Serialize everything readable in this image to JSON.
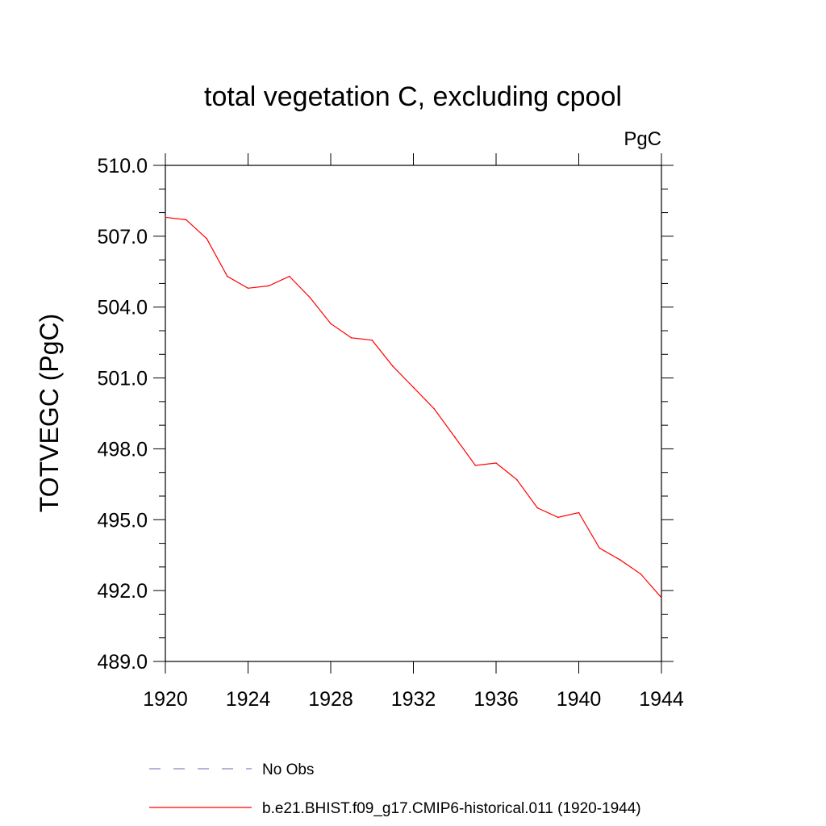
{
  "chart_data": {
    "type": "line",
    "title": "total vegetation C, excluding cpool",
    "units": "PgC",
    "ylabel": "TOTVEGC  (PgC)",
    "xlabel": "",
    "xlim": [
      1920,
      1944
    ],
    "ylim": [
      489.0,
      510.0
    ],
    "xticks": [
      "1920",
      "1924",
      "1928",
      "1932",
      "1936",
      "1940",
      "1944"
    ],
    "yticks": [
      "489.0",
      "492.0",
      "495.0",
      "498.0",
      "501.0",
      "504.0",
      "507.0",
      "510.0"
    ],
    "grid": false,
    "legend_position": "bottom",
    "series": [
      {
        "name": "b.e21.BHIST.f09_g17.CMIP6-historical.011 (1920-1944)",
        "color": "#ff0000",
        "style": "solid",
        "x": [
          1920,
          1921,
          1922,
          1923,
          1924,
          1925,
          1926,
          1927,
          1928,
          1929,
          1930,
          1931,
          1932,
          1933,
          1934,
          1935,
          1936,
          1937,
          1938,
          1939,
          1940,
          1941,
          1942,
          1943,
          1944
        ],
        "values": [
          507.8,
          507.7,
          506.9,
          505.3,
          504.8,
          504.9,
          505.3,
          504.4,
          503.3,
          502.7,
          502.6,
          501.5,
          500.6,
          499.7,
          498.5,
          497.3,
          497.4,
          496.7,
          495.5,
          495.1,
          495.3,
          493.8,
          493.3,
          492.7,
          491.7
        ]
      },
      {
        "name": "No Obs",
        "color": "#8a84c4",
        "style": "dashed",
        "x": [],
        "values": []
      }
    ]
  }
}
